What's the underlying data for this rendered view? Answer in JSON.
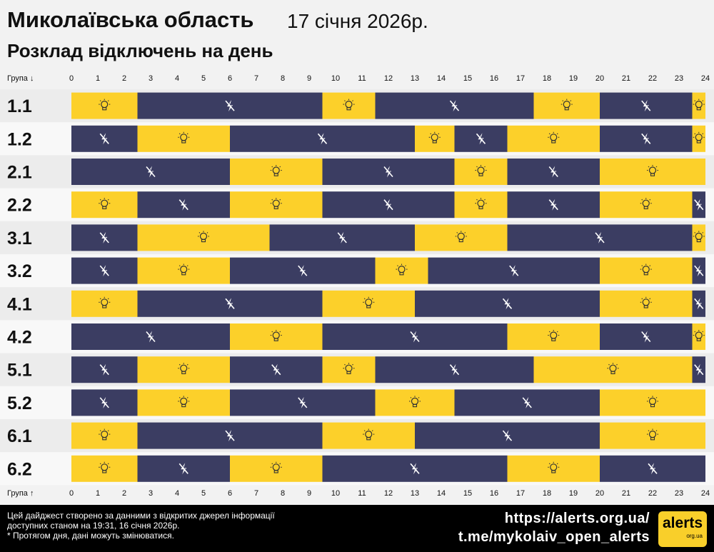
{
  "header": {
    "region": "Миколаївська область",
    "date": "17 січня 2026р.",
    "subtitle": "Розклад відключень на день"
  },
  "chart_data": {
    "type": "timeline",
    "axis_label_top": "Група ↓",
    "axis_label_bottom": "Група ↑",
    "x_ticks": [
      "0",
      "1",
      "2",
      "3",
      "4",
      "5",
      "6",
      "7",
      "8",
      "9",
      "10",
      "11",
      "12",
      "13",
      "14",
      "15",
      "16",
      "17",
      "18",
      "19",
      "20",
      "21",
      "22",
      "23",
      "24"
    ],
    "xlim": [
      0,
      24
    ],
    "colors": {
      "on": "#fcd02a",
      "off": "#3b3d62",
      "row_bg_a": "#ececec",
      "row_bg_b": "#f8f8f8"
    },
    "icons": {
      "on": "lightbulb-icon",
      "off": "power-off-icon"
    },
    "groups": [
      {
        "name": "1.1",
        "segments": [
          [
            "on",
            0,
            2.5
          ],
          [
            "off",
            2.5,
            9.5
          ],
          [
            "on",
            9.5,
            11.5
          ],
          [
            "off",
            11.5,
            17.5
          ],
          [
            "on",
            17.5,
            20
          ],
          [
            "off",
            20,
            23.5
          ],
          [
            "on",
            23.5,
            24
          ]
        ]
      },
      {
        "name": "1.2",
        "segments": [
          [
            "off",
            0,
            2.5
          ],
          [
            "on",
            2.5,
            6
          ],
          [
            "off",
            6,
            13
          ],
          [
            "on",
            13,
            14.5
          ],
          [
            "off",
            14.5,
            16.5
          ],
          [
            "on",
            16.5,
            20
          ],
          [
            "off",
            20,
            23.5
          ],
          [
            "on",
            23.5,
            24
          ]
        ]
      },
      {
        "name": "2.1",
        "segments": [
          [
            "off",
            0,
            6
          ],
          [
            "on",
            6,
            9.5
          ],
          [
            "off",
            9.5,
            14.5
          ],
          [
            "on",
            14.5,
            16.5
          ],
          [
            "off",
            16.5,
            20
          ],
          [
            "on",
            20,
            24
          ]
        ]
      },
      {
        "name": "2.2",
        "segments": [
          [
            "on",
            0,
            2.5
          ],
          [
            "off",
            2.5,
            6
          ],
          [
            "on",
            6,
            9.5
          ],
          [
            "off",
            9.5,
            14.5
          ],
          [
            "on",
            14.5,
            16.5
          ],
          [
            "off",
            16.5,
            20
          ],
          [
            "on",
            20,
            23.5
          ],
          [
            "off",
            23.5,
            24
          ]
        ]
      },
      {
        "name": "3.1",
        "segments": [
          [
            "off",
            0,
            2.5
          ],
          [
            "on",
            2.5,
            7.5
          ],
          [
            "off",
            7.5,
            13
          ],
          [
            "on",
            13,
            16.5
          ],
          [
            "off",
            16.5,
            23.5
          ],
          [
            "on",
            23.5,
            24
          ]
        ]
      },
      {
        "name": "3.2",
        "segments": [
          [
            "off",
            0,
            2.5
          ],
          [
            "on",
            2.5,
            6
          ],
          [
            "off",
            6,
            11.5
          ],
          [
            "on",
            11.5,
            13.5
          ],
          [
            "off",
            13.5,
            20
          ],
          [
            "on",
            20,
            23.5
          ],
          [
            "off",
            23.5,
            24
          ]
        ]
      },
      {
        "name": "4.1",
        "segments": [
          [
            "on",
            0,
            2.5
          ],
          [
            "off",
            2.5,
            9.5
          ],
          [
            "on",
            9.5,
            13
          ],
          [
            "off",
            13,
            20
          ],
          [
            "on",
            20,
            23.5
          ],
          [
            "off",
            23.5,
            24
          ]
        ]
      },
      {
        "name": "4.2",
        "segments": [
          [
            "off",
            0,
            6
          ],
          [
            "on",
            6,
            9.5
          ],
          [
            "off",
            9.5,
            16.5
          ],
          [
            "on",
            16.5,
            20
          ],
          [
            "off",
            20,
            23.5
          ],
          [
            "on",
            23.5,
            24
          ]
        ]
      },
      {
        "name": "5.1",
        "segments": [
          [
            "off",
            0,
            2.5
          ],
          [
            "on",
            2.5,
            6
          ],
          [
            "off",
            6,
            9.5
          ],
          [
            "on",
            9.5,
            11.5
          ],
          [
            "off",
            11.5,
            17.5
          ],
          [
            "on",
            17.5,
            23.5
          ],
          [
            "off",
            23.5,
            24
          ]
        ]
      },
      {
        "name": "5.2",
        "segments": [
          [
            "off",
            0,
            2.5
          ],
          [
            "on",
            2.5,
            6
          ],
          [
            "off",
            6,
            11.5
          ],
          [
            "on",
            11.5,
            14.5
          ],
          [
            "off",
            14.5,
            20
          ],
          [
            "on",
            20,
            24
          ]
        ]
      },
      {
        "name": "6.1",
        "segments": [
          [
            "on",
            0,
            2.5
          ],
          [
            "off",
            2.5,
            9.5
          ],
          [
            "on",
            9.5,
            13
          ],
          [
            "off",
            13,
            20
          ],
          [
            "on",
            20,
            24
          ]
        ]
      },
      {
        "name": "6.2",
        "segments": [
          [
            "on",
            0,
            2.5
          ],
          [
            "off",
            2.5,
            6
          ],
          [
            "on",
            6,
            9.5
          ],
          [
            "off",
            9.5,
            16.5
          ],
          [
            "on",
            16.5,
            20
          ],
          [
            "off",
            20,
            24
          ]
        ]
      }
    ]
  },
  "footer": {
    "note_line1": "Цей дайджест створено за данними з відкритих джерел інформації",
    "note_line2": "доступних станом на 19:31, 16 січня 2026р.",
    "note_line3": "* Протягом дня, дані можуть змінюватися.",
    "link_site": "https://alerts.org.ua/",
    "link_telegram": "t.me/mykolaiv_open_alerts",
    "logo_main": "alerts",
    "logo_sub": "org.ua"
  }
}
